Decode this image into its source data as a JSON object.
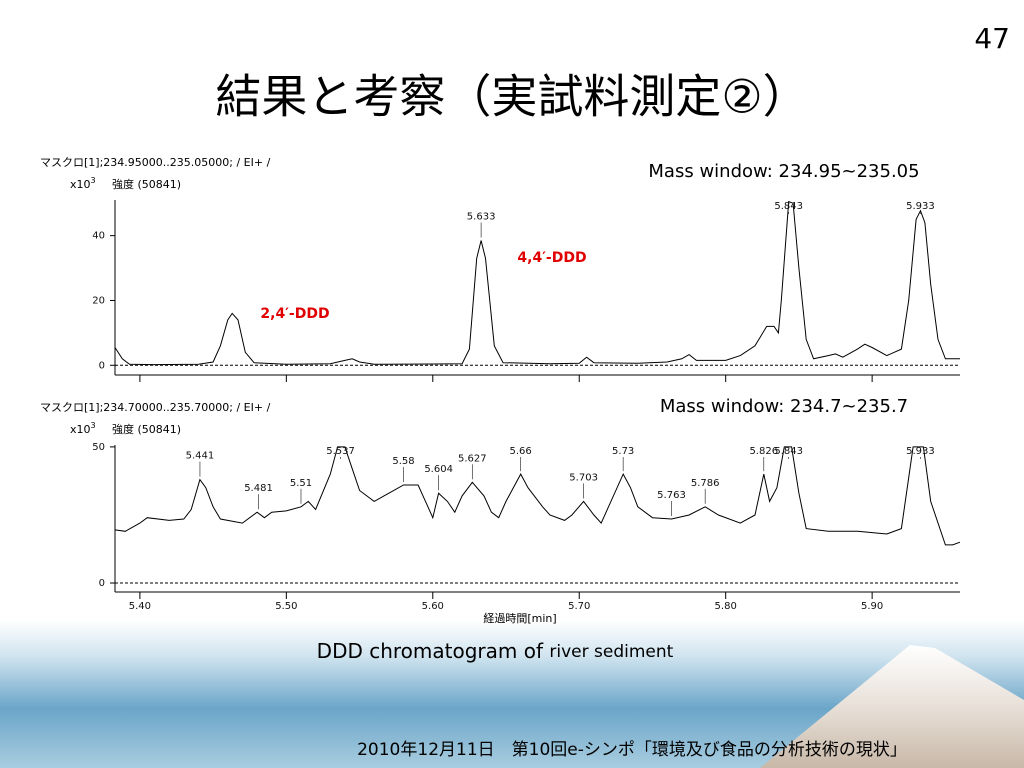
{
  "page_number": "47",
  "title": "結果と考察（実試料測定②）",
  "caption": {
    "main": "DDD chromatogram of ",
    "sub": "river sediment"
  },
  "footer": "2010年12月11日　第10回e-シンポ「環境及び食品の分析技術の現状」",
  "chart_data": [
    {
      "type": "line",
      "header": "マスクロ[1];234.95000..235.05000; / EI+ /",
      "y_unit": {
        "base": "x10",
        "exponent": "3"
      },
      "intensity": "強度 (50841)",
      "annotation": "Mass window: 234.95~235.05",
      "compounds": [
        "2,4′-DDD",
        "4,4′-DDD"
      ],
      "color": "#000000",
      "x": [
        5.383,
        5.388,
        5.393,
        5.41,
        5.44,
        5.45,
        5.455,
        5.46,
        5.463,
        5.467,
        5.472,
        5.478,
        5.5,
        5.53,
        5.54,
        5.545,
        5.55,
        5.56,
        5.6,
        5.62,
        5.625,
        5.63,
        5.633,
        5.636,
        5.642,
        5.648,
        5.68,
        5.7,
        5.705,
        5.71,
        5.74,
        5.76,
        5.77,
        5.775,
        5.78,
        5.8,
        5.81,
        5.82,
        5.828,
        5.833,
        5.836,
        5.838,
        5.843,
        5.846,
        5.85,
        5.855,
        5.86,
        5.87,
        5.875,
        5.88,
        5.89,
        5.895,
        5.9,
        5.91,
        5.92,
        5.925,
        5.93,
        5.933,
        5.936,
        5.94,
        5.945,
        5.95,
        5.96
      ],
      "values": [
        5.5,
        2,
        0.3,
        0.2,
        0.3,
        1,
        6,
        14,
        16,
        14,
        4,
        0.8,
        0.3,
        0.5,
        1.5,
        2,
        1,
        0.3,
        0.4,
        0.5,
        5,
        33,
        38.5,
        33,
        6,
        0.8,
        0.5,
        0.6,
        2.5,
        0.8,
        0.6,
        1,
        2,
        3.3,
        1.5,
        1.5,
        3,
        6,
        12,
        12,
        10,
        20,
        50.5,
        50,
        30,
        8,
        2,
        3,
        3.5,
        2.5,
        5,
        6.5,
        5.5,
        3,
        5,
        20,
        45,
        47.7,
        44,
        25,
        8,
        2,
        2
      ],
      "peak_labels": [
        5.633,
        5.843,
        5.933
      ],
      "xlim": [
        5.383,
        5.96
      ],
      "ylim": [
        -3,
        51
      ],
      "yticks": [
        0,
        20,
        40
      ]
    },
    {
      "type": "line",
      "header": "マスクロ[1];234.70000..235.70000; / EI+ /",
      "y_unit": {
        "base": "x10",
        "exponent": "3"
      },
      "intensity": "強度 (50841)",
      "annotation": "Mass window: 234.7~235.7",
      "x_label": "経過時間[min]",
      "color": "#000000",
      "x": [
        5.383,
        5.39,
        5.4,
        5.405,
        5.42,
        5.43,
        5.435,
        5.441,
        5.445,
        5.45,
        5.455,
        5.47,
        5.48,
        5.485,
        5.49,
        5.5,
        5.51,
        5.515,
        5.52,
        5.53,
        5.535,
        5.54,
        5.545,
        5.55,
        5.56,
        5.57,
        5.58,
        5.59,
        5.595,
        5.6,
        5.604,
        5.61,
        5.615,
        5.62,
        5.627,
        5.635,
        5.64,
        5.645,
        5.65,
        5.66,
        5.665,
        5.675,
        5.68,
        5.69,
        5.695,
        5.703,
        5.71,
        5.715,
        5.72,
        5.73,
        5.735,
        5.74,
        5.75,
        5.763,
        5.775,
        5.786,
        5.795,
        5.81,
        5.82,
        5.826,
        5.83,
        5.835,
        5.84,
        5.845,
        5.85,
        5.855,
        5.87,
        5.89,
        5.91,
        5.92,
        5.928,
        5.935,
        5.94,
        5.95,
        5.955,
        5.96
      ],
      "values": [
        19.5,
        19,
        22,
        24,
        23,
        23.5,
        27,
        38,
        35,
        28,
        23.5,
        22,
        26,
        24,
        26,
        26.5,
        28,
        30,
        27,
        40,
        50,
        50,
        42,
        34,
        30,
        33,
        36,
        36,
        30,
        24,
        33,
        30,
        26,
        32,
        37,
        32,
        26,
        24,
        30,
        40,
        35,
        28,
        25,
        23,
        25,
        30,
        25,
        22,
        28,
        40,
        35,
        28,
        24,
        23.5,
        25,
        28,
        25,
        22,
        25,
        40,
        30,
        35,
        50,
        50,
        33,
        20,
        19,
        19,
        18,
        20,
        50,
        50,
        30,
        14,
        14,
        15
      ],
      "peak_labels": [
        5.441,
        5.481,
        5.51,
        5.537,
        5.58,
        5.604,
        5.627,
        5.66,
        5.703,
        5.73,
        5.763,
        5.786,
        5.826,
        5.843,
        5.933
      ],
      "xlim": [
        5.383,
        5.96
      ],
      "ylim": [
        -3.3,
        50.7
      ],
      "yticks": [
        0,
        50
      ],
      "xticks": [
        {
          "value": 5.4,
          "label": "5.40"
        },
        {
          "value": 5.5,
          "label": "5.50"
        },
        {
          "value": 5.6,
          "label": "5.60"
        },
        {
          "value": 5.7,
          "label": "5.70"
        },
        {
          "value": 5.8,
          "label": "5.80"
        },
        {
          "value": 5.9,
          "label": "5.90"
        }
      ]
    }
  ]
}
